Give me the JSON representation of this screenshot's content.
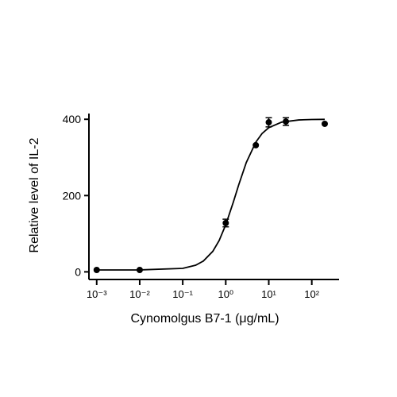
{
  "chart_data": {
    "type": "scatter",
    "x_label": "Cynomolgus B7-1 (μg/mL)",
    "y_label": "Relative level of IL-2",
    "xlog": true,
    "xlim": [
      0.00066,
      430
    ],
    "ylim": [
      -20,
      415
    ],
    "xticks": [
      {
        "value": 0.001,
        "label": "10⁻³"
      },
      {
        "value": 0.01,
        "label": "10⁻²"
      },
      {
        "value": 0.1,
        "label": "10⁻¹"
      },
      {
        "value": 1,
        "label": "10⁰"
      },
      {
        "value": 10,
        "label": "10¹"
      },
      {
        "value": 100,
        "label": "10²"
      }
    ],
    "yticks": [
      0,
      200,
      400
    ],
    "color": "#000000",
    "series": [
      {
        "x": [
          0.001,
          0.01,
          1,
          5,
          10,
          25,
          200
        ],
        "values": [
          5,
          5,
          128,
          332,
          392,
          394,
          388
        ],
        "errors": [
          null,
          null,
          10,
          null,
          12,
          10,
          null
        ]
      }
    ],
    "fit": {
      "x": [
        0.001,
        0.01,
        0.1,
        0.2,
        0.3,
        0.5,
        0.7,
        1,
        1.5,
        2,
        3,
        5,
        7,
        10,
        20,
        50,
        100,
        200
      ],
      "values": [
        5.0,
        5.1,
        9.2,
        17.5,
        28.2,
        53.8,
        81.9,
        123.4,
        182.8,
        228,
        286.5,
        340,
        362.8,
        378,
        392.5,
        398.2,
        399.4,
        399.8
      ]
    }
  }
}
